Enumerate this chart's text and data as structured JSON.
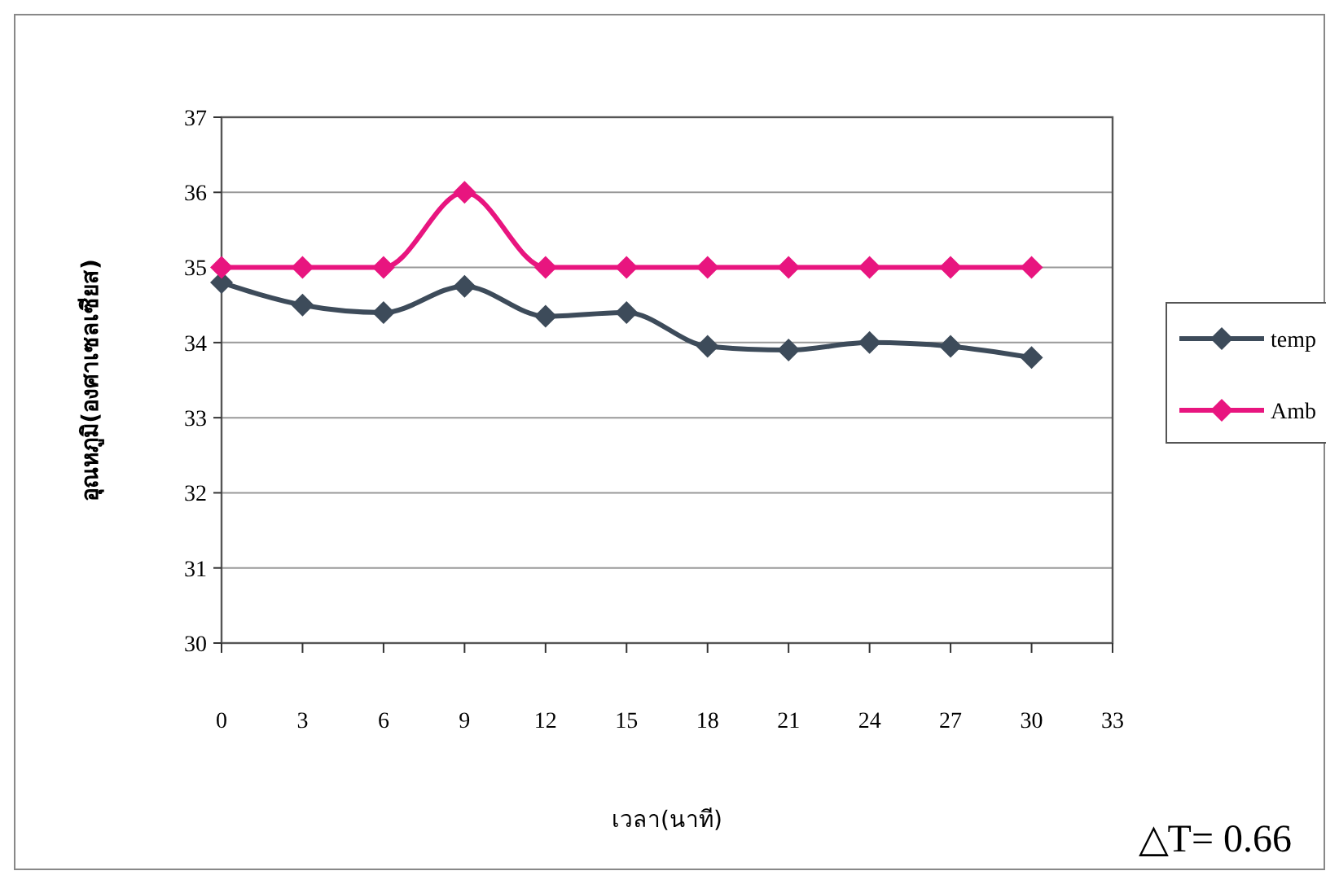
{
  "chart_data": {
    "type": "line",
    "xlabel": "เวลา(นาที)",
    "ylabel": "อุณหภูมิ(องศาเซลเซียส)",
    "x": [
      0,
      3,
      6,
      9,
      12,
      15,
      18,
      21,
      24,
      27,
      30
    ],
    "series": [
      {
        "name": "temp",
        "color": "#3d4b5a",
        "values": [
          34.8,
          34.5,
          34.4,
          34.75,
          34.35,
          34.4,
          33.95,
          33.9,
          34.0,
          33.95,
          33.8
        ]
      },
      {
        "name": "Amb",
        "color": "#e8157f",
        "values": [
          35,
          35,
          35,
          36,
          35,
          35,
          35,
          35,
          35,
          35,
          35
        ]
      }
    ],
    "xlim": [
      0,
      33
    ],
    "xticks": [
      0,
      3,
      6,
      9,
      12,
      15,
      18,
      21,
      24,
      27,
      30,
      33
    ],
    "ylim": [
      30,
      37
    ],
    "yticks": [
      30,
      31,
      32,
      33,
      34,
      35,
      36,
      37
    ],
    "grid": "y",
    "legend": "right",
    "marker": "diamond",
    "line_style": "solid",
    "annotations": [
      "△T= 0.66"
    ]
  }
}
